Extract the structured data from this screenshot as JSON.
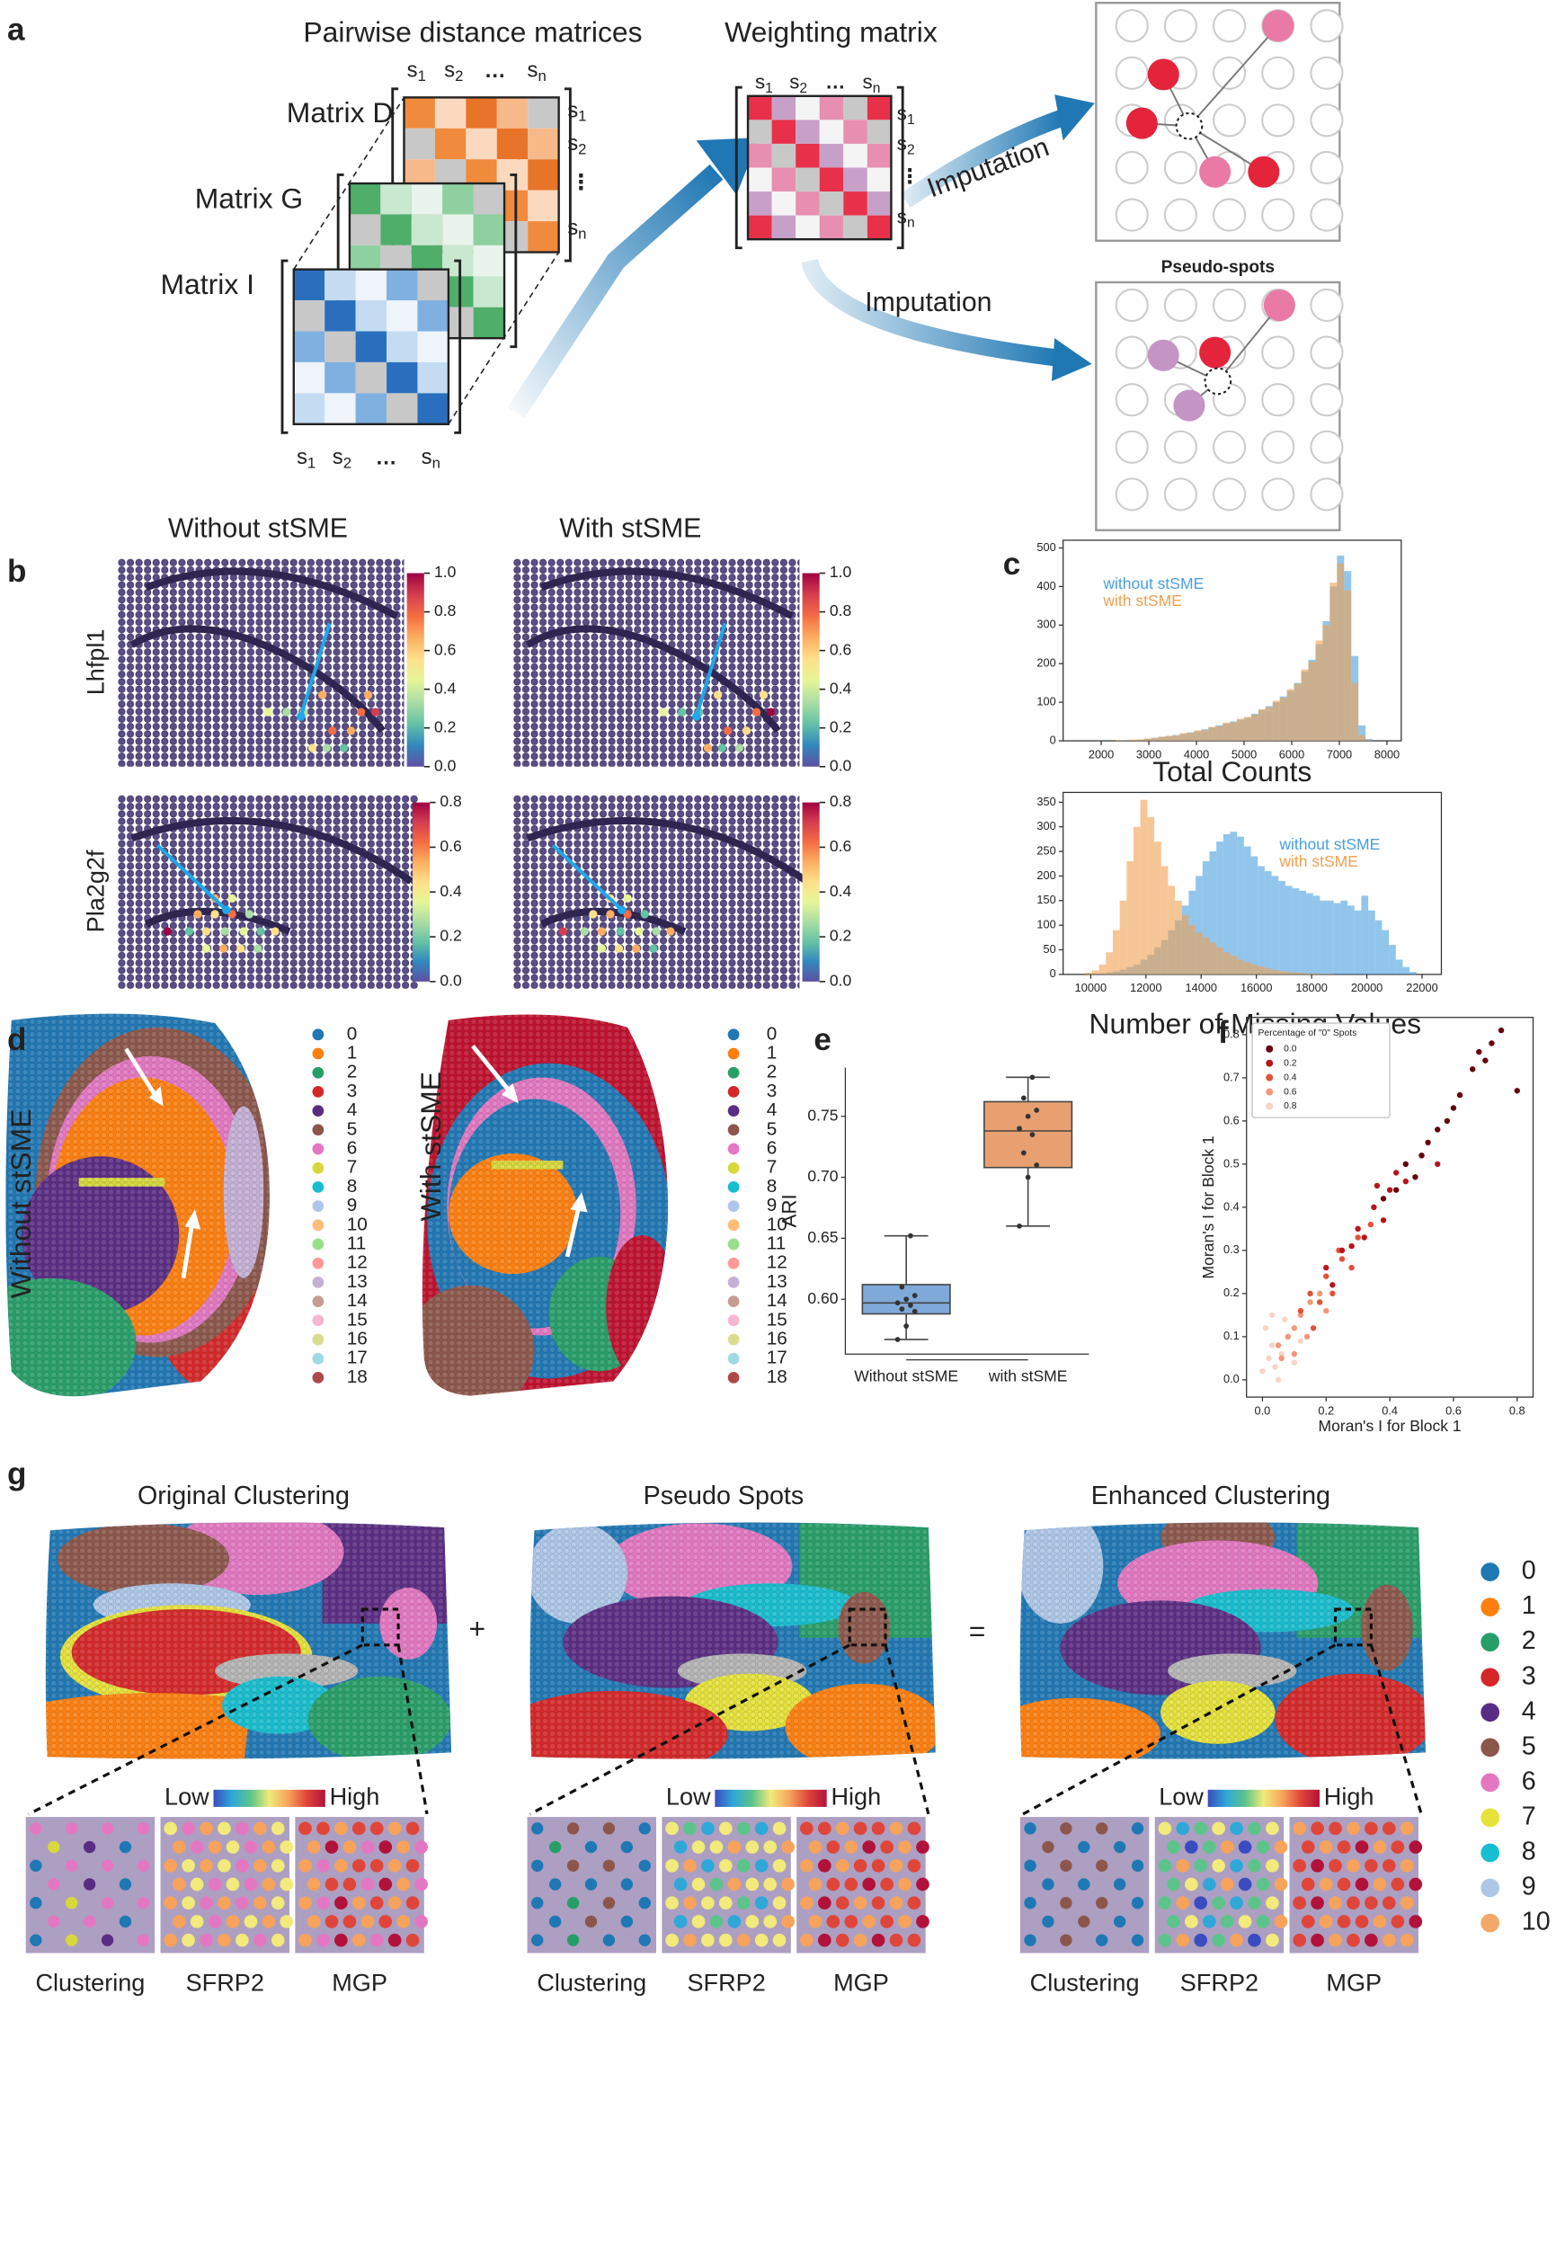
{
  "panel_labels": [
    "a",
    "b",
    "c",
    "d",
    "e",
    "f",
    "g"
  ],
  "panel_a": {
    "titles": [
      "Pairwise distance matrices",
      "Weighting matrix"
    ],
    "matrices": [
      "Matrix D",
      "Matrix G",
      "Matrix I"
    ],
    "imputation": "Imputation",
    "pseudo_spots": "Pseudo-spots",
    "spot_letter": "s",
    "spot_indices": [
      "1",
      "2",
      "n"
    ],
    "ellipsis": "…",
    "vellipsis": "⋮"
  },
  "panel_b": {
    "columns": [
      "Without stSME",
      "With stSME"
    ],
    "genes": [
      "Lhfpl1",
      "Pla2g2f"
    ]
  },
  "colorbars": [
    {
      "colors": [
        "#5e4fa2",
        "#3288bd",
        "#66c2a5",
        "#abdda4",
        "#e6f598",
        "#fee08b",
        "#fdae61",
        "#f46d43",
        "#d53e4f",
        "#9e0142"
      ],
      "lim": [
        0,
        1
      ],
      "ticks": [
        {
          "value": 0,
          "label": "0.0"
        },
        0.2,
        0.4,
        0.6,
        0.8,
        {
          "value": 1,
          "label": "1.0"
        }
      ]
    },
    {
      "colors": [
        "#5e4fa2",
        "#3288bd",
        "#66c2a5",
        "#abdda4",
        "#e6f598",
        "#fee08b",
        "#fdae61",
        "#f46d43",
        "#d53e4f",
        "#9e0142"
      ],
      "lim": [
        0,
        0.8
      ],
      "ticks": [
        {
          "value": 0,
          "label": "0.0"
        },
        0.2,
        0.4,
        0.6,
        0.8
      ]
    }
  ],
  "chart_data": [
    {
      "type": "histogram",
      "xlabel": "Total Counts",
      "xlim": [
        1200,
        8300
      ],
      "ylim": [
        0,
        520
      ],
      "xticks": [
        2000,
        3000,
        4000,
        5000,
        6000,
        7000,
        8000
      ],
      "yticks": [
        0,
        100,
        200,
        300,
        400,
        500
      ],
      "bins": [
        2300,
        2450,
        2600,
        2750,
        2900,
        3050,
        3200,
        3350,
        3500,
        3650,
        3800,
        3950,
        4100,
        4250,
        4400,
        4550,
        4700,
        4850,
        5000,
        5150,
        5300,
        5450,
        5600,
        5750,
        5900,
        6050,
        6200,
        6350,
        6500,
        6650,
        6800,
        6950,
        7100,
        7250,
        7400,
        7550,
        7700
      ],
      "series": [
        {
          "name": "without stSME",
          "color": "#4a9fe0",
          "values": [
            1,
            2,
            2,
            3,
            5,
            8,
            10,
            12,
            15,
            18,
            22,
            25,
            30,
            35,
            40,
            45,
            50,
            55,
            60,
            70,
            80,
            90,
            100,
            115,
            130,
            150,
            180,
            210,
            250,
            310,
            400,
            480,
            440,
            220,
            40,
            5
          ]
        },
        {
          "name": "with stSME",
          "color": "#f0a050",
          "values": [
            2,
            1,
            3,
            4,
            6,
            7,
            11,
            13,
            14,
            20,
            21,
            27,
            28,
            36,
            38,
            47,
            48,
            57,
            62,
            68,
            82,
            88,
            104,
            112,
            134,
            148,
            185,
            205,
            260,
            300,
            410,
            460,
            390,
            150,
            15,
            2
          ]
        }
      ]
    },
    {
      "type": "histogram",
      "xlabel": "Number of Missing Values",
      "xlim": [
        9000,
        22700
      ],
      "ylim": [
        0,
        370
      ],
      "xticks": [
        10000,
        12000,
        14000,
        16000,
        18000,
        20000,
        22000
      ],
      "yticks": [
        0,
        50,
        100,
        150,
        200,
        250,
        300,
        350
      ],
      "bins": [
        9800,
        10050,
        10300,
        10550,
        10800,
        11050,
        11300,
        11550,
        11800,
        12050,
        12300,
        12550,
        12800,
        13050,
        13300,
        13550,
        13800,
        14050,
        14300,
        14550,
        14800,
        15050,
        15300,
        15550,
        15800,
        16050,
        16300,
        16550,
        16800,
        17050,
        17300,
        17550,
        17800,
        18050,
        18300,
        18550,
        18800,
        19050,
        19300,
        19550,
        19800,
        20050,
        20300,
        20550,
        20800,
        21050,
        21300,
        21550,
        21800
      ],
      "series": [
        {
          "name": "without stSME",
          "color": "#4a9fe0",
          "values": [
            0,
            0,
            2,
            4,
            6,
            10,
            15,
            20,
            30,
            40,
            55,
            70,
            90,
            110,
            140,
            170,
            200,
            230,
            250,
            270,
            285,
            290,
            280,
            260,
            240,
            220,
            210,
            200,
            190,
            180,
            175,
            170,
            165,
            160,
            150,
            150,
            145,
            150,
            140,
            130,
            160,
            130,
            110,
            90,
            60,
            30,
            15,
            5
          ]
        },
        {
          "name": "with stSME",
          "color": "#f0a050",
          "values": [
            3,
            8,
            20,
            45,
            90,
            150,
            230,
            300,
            355,
            320,
            270,
            220,
            180,
            150,
            120,
            100,
            85,
            75,
            65,
            55,
            45,
            38,
            30,
            25,
            20,
            16,
            12,
            9,
            7,
            5,
            4,
            3,
            2,
            2,
            1,
            1,
            0,
            0,
            0,
            0,
            0,
            0,
            0,
            0,
            0,
            0,
            0,
            0
          ]
        }
      ]
    },
    {
      "type": "box",
      "ylabel": "ARI",
      "categories": [
        "Without stSME",
        "with stSME"
      ],
      "colors": [
        "#7fa9d8",
        "#e9a070"
      ],
      "ylim": [
        0.555,
        0.79
      ],
      "yticks": [
        {
          "value": 0.6,
          "label": "0.60"
        },
        0.65,
        {
          "value": 0.7,
          "label": "0.70"
        },
        0.75
      ],
      "boxes": [
        {
          "whislo": 0.567,
          "q1": 0.588,
          "med": 0.597,
          "q3": 0.612,
          "whishi": 0.652,
          "points": [
            0.567,
            0.578,
            0.59,
            0.592,
            0.595,
            0.597,
            0.6,
            0.603,
            0.61,
            0.652
          ]
        },
        {
          "whislo": 0.66,
          "q1": 0.708,
          "med": 0.738,
          "q3": 0.762,
          "whishi": 0.782,
          "points": [
            0.66,
            0.7,
            0.71,
            0.72,
            0.735,
            0.74,
            0.75,
            0.755,
            0.765,
            0.782
          ]
        }
      ]
    },
    {
      "type": "scatter",
      "xlabel": "Moran's I for Block 1",
      "ylabel": "Moran's I for Block 1",
      "legend_title": "Percentage of \"0\" Spots",
      "xlim": [
        -0.05,
        0.85
      ],
      "ylim": [
        -0.04,
        0.84
      ],
      "xticks": [
        {
          "value": 0,
          "label": "0.0"
        },
        0.2,
        0.4,
        0.6,
        0.8
      ],
      "yticks": [
        {
          "value": 0,
          "label": "0.0"
        },
        0.1,
        0.2,
        0.3,
        0.4,
        0.5,
        0.6,
        0.7,
        0.8
      ],
      "series": [
        {
          "name": "0.0",
          "color": "#67000d",
          "x": [
            0.72,
            0.75,
            0.7,
            0.66,
            0.62,
            0.58,
            0.55,
            0.5,
            0.45,
            0.42,
            0.38,
            0.6,
            0.68,
            0.52,
            0.48,
            0.8
          ],
          "y": [
            0.78,
            0.81,
            0.74,
            0.72,
            0.66,
            0.6,
            0.58,
            0.52,
            0.5,
            0.44,
            0.42,
            0.63,
            0.76,
            0.55,
            0.47,
            0.67
          ]
        },
        {
          "name": "0.2",
          "color": "#b8141c",
          "x": [
            0.2,
            0.25,
            0.3,
            0.35,
            0.4,
            0.45,
            0.5,
            0.32,
            0.28,
            0.38,
            0.42,
            0.55,
            0.22,
            0.36
          ],
          "y": [
            0.26,
            0.3,
            0.35,
            0.4,
            0.44,
            0.46,
            0.52,
            0.33,
            0.31,
            0.37,
            0.48,
            0.5,
            0.22,
            0.45
          ]
        },
        {
          "name": "0.4",
          "color": "#e2513c",
          "x": [
            0.12,
            0.15,
            0.18,
            0.2,
            0.22,
            0.25,
            0.28,
            0.3,
            0.16,
            0.24,
            0.34
          ],
          "y": [
            0.16,
            0.2,
            0.18,
            0.24,
            0.2,
            0.28,
            0.26,
            0.33,
            0.12,
            0.3,
            0.36
          ]
        },
        {
          "name": "0.6",
          "color": "#f4967a",
          "x": [
            0.05,
            0.08,
            0.1,
            0.12,
            0.14,
            0.06,
            0.18,
            0.2,
            0.1,
            0.15
          ],
          "y": [
            0.08,
            0.1,
            0.12,
            0.15,
            0.1,
            0.05,
            0.2,
            0.16,
            0.06,
            0.18
          ]
        },
        {
          "name": "0.8",
          "color": "#f6d5c6",
          "x": [
            0,
            0.02,
            0.04,
            0.03,
            0.06,
            0.08,
            0.01,
            0.05,
            0.1,
            0.07,
            0.12,
            0.03
          ],
          "y": [
            0.02,
            0.05,
            0.03,
            0.08,
            0.06,
            0.1,
            0.12,
            0,
            0.04,
            0.14,
            0.09,
            0.15
          ]
        }
      ]
    }
  ],
  "panel_d": {
    "rows": [
      "Without stSME",
      "With stSME"
    ],
    "legend": {
      "labels": [
        "0",
        "1",
        "2",
        "3",
        "4",
        "5",
        "6",
        "7",
        "8",
        "9",
        "10",
        "11",
        "12",
        "13",
        "14",
        "15",
        "16",
        "17",
        "18"
      ],
      "colors": [
        "#1f77b4",
        "#ff7f0e",
        "#279e68",
        "#d62728",
        "#5b2c83",
        "#8c564b",
        "#e377c2",
        "#d8d83a",
        "#17becf",
        "#aec7e8",
        "#ffbb78",
        "#98df8a",
        "#ff9896",
        "#c5b0d5",
        "#c49c94",
        "#f7b6d2",
        "#dbdb8d",
        "#9edae5",
        "#ad494a"
      ]
    }
  },
  "panel_g": {
    "titles": [
      "Original Clustering",
      "Pseudo Spots",
      "Enhanced Clustering"
    ],
    "operators": [
      "+",
      "="
    ],
    "scale": {
      "low": "Low",
      "high": "High",
      "colors": [
        "#3b4cc0",
        "#2fa8d8",
        "#5cc48a",
        "#f2ea7a",
        "#f7a35c",
        "#e0453a",
        "#b2123a"
      ]
    },
    "insets": [
      "Clustering",
      "SFRP2",
      "MGP"
    ],
    "legend": {
      "labels": [
        "0",
        "1",
        "2",
        "3",
        "4",
        "5",
        "6",
        "7",
        "8",
        "9",
        "10"
      ],
      "colors": [
        "#1f77b4",
        "#ff7f0e",
        "#279e68",
        "#d62728",
        "#5b2c83",
        "#8c564b",
        "#e377c2",
        "#e6e23a",
        "#17becf",
        "#aec7e8",
        "#f2a868"
      ]
    }
  }
}
